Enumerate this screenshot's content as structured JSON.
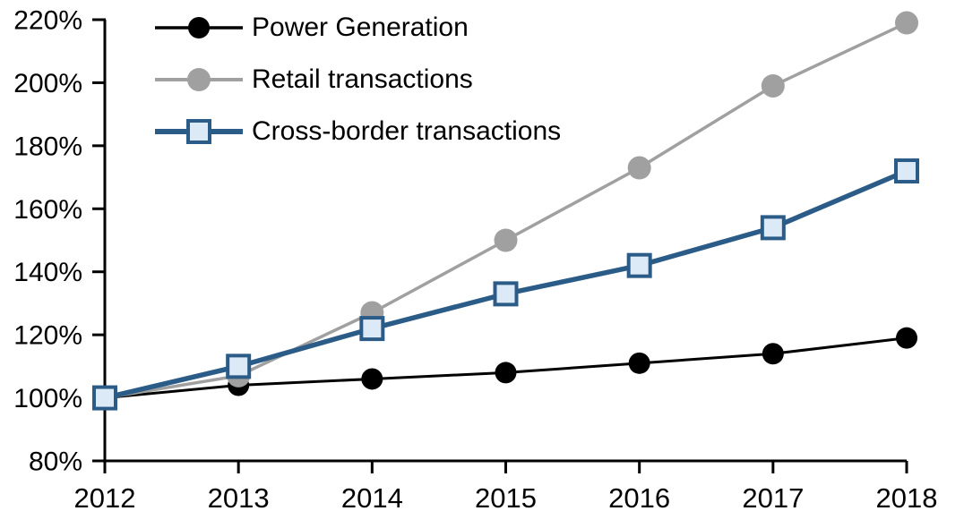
{
  "chart_data": {
    "type": "line",
    "title": "",
    "xlabel": "",
    "ylabel": "",
    "categories": [
      "2012",
      "2013",
      "2014",
      "2015",
      "2016",
      "2017",
      "2018"
    ],
    "series": [
      {
        "name": "Power Generation",
        "values": [
          100,
          104,
          106,
          108,
          111,
          114,
          119
        ],
        "color": "#000000",
        "marker": "circle",
        "marker_fill": "#000000"
      },
      {
        "name": "Retail transactions",
        "values": [
          100,
          107,
          127,
          150,
          173,
          199,
          219
        ],
        "color": "#A0A0A0",
        "marker": "circle",
        "marker_fill": "#A0A0A0"
      },
      {
        "name": "Cross-border transactions",
        "values": [
          100,
          110,
          122,
          133,
          142,
          154,
          172
        ],
        "color": "#2B5C88",
        "marker": "square",
        "marker_fill": "#DCE9F6"
      }
    ],
    "ylim": [
      80,
      220
    ],
    "y_tick_step": 20,
    "y_tick_labels": [
      "80%",
      "100%",
      "120%",
      "140%",
      "160%",
      "180%",
      "200%",
      "220%"
    ],
    "x_tick_labels": [
      "2012",
      "2013",
      "2014",
      "2015",
      "2016",
      "2017",
      "2018"
    ],
    "legend_position": "top-left",
    "grid": false,
    "axis_color": "#000000",
    "text_color": "#000000"
  }
}
